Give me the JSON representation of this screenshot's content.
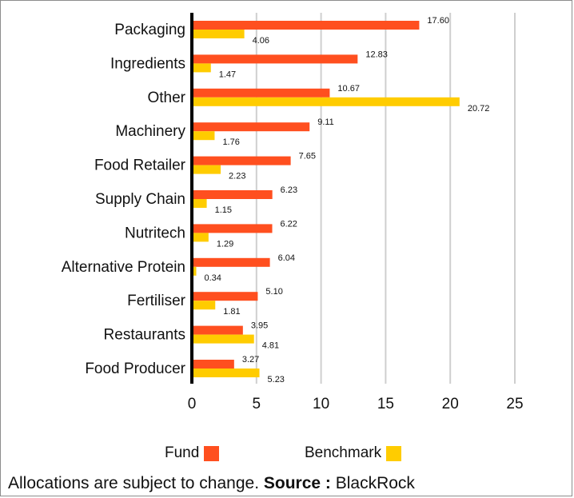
{
  "chart_data": {
    "type": "bar",
    "orientation": "horizontal",
    "categories": [
      "Packaging",
      "Ingredients",
      "Other",
      "Machinery",
      "Food Retailer",
      "Supply Chain",
      "Nutritech",
      "Alternative Protein",
      "Fertiliser",
      "Restaurants",
      "Food Producer"
    ],
    "series": [
      {
        "name": "Fund",
        "color": "#ff4f1f",
        "values": [
          17.6,
          12.83,
          10.67,
          9.11,
          7.65,
          6.23,
          6.22,
          6.04,
          5.1,
          3.95,
          3.27
        ],
        "labels": [
          "17.60",
          "12.83",
          "10.67",
          "9.11",
          "7.65",
          "6.23",
          "6.22",
          "6.04",
          "5.10",
          "3.95",
          "3.27"
        ]
      },
      {
        "name": "Benchmark",
        "color": "#ffcc00",
        "values": [
          4.06,
          1.47,
          20.72,
          1.76,
          2.23,
          1.15,
          1.29,
          0.34,
          1.81,
          4.81,
          5.23
        ],
        "labels": [
          "4.06",
          "1.47",
          "20.72",
          "1.76",
          "2.23",
          "1.15",
          "1.29",
          "0.34",
          "1.81",
          "4.81",
          "5.23"
        ]
      }
    ],
    "xlim": [
      0,
      25
    ],
    "xticks": [
      "0",
      "5",
      "10",
      "15",
      "20",
      "25"
    ],
    "grid": true,
    "legend_position": "bottom",
    "xlabel": "",
    "ylabel": ""
  },
  "footnote": {
    "text": "Allocations are subject to change. ",
    "source_label": "Source :",
    "source_value": " BlackRock"
  }
}
